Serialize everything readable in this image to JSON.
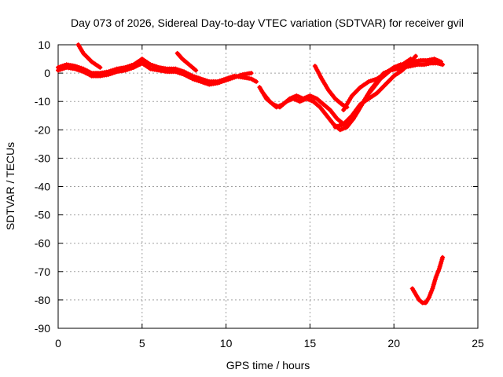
{
  "chart_data": {
    "type": "scatter",
    "title": "Day 073 of 2026, Sidereal Day-to-day VTEC variation (SDTVAR) for receiver gvil",
    "xlabel": "GPS time / hours",
    "ylabel": "SDTVAR / TECUs",
    "xlim": [
      0,
      25
    ],
    "ylim": [
      -90,
      10
    ],
    "xticks": [
      0,
      5,
      10,
      15,
      20,
      25
    ],
    "yticks": [
      10,
      0,
      -10,
      -20,
      -30,
      -40,
      -50,
      -60,
      -70,
      -80,
      -90
    ],
    "grid": true,
    "color": "#ff0000",
    "marker": "plus",
    "series": [
      {
        "x": [
          0.0,
          0.5,
          1.0,
          1.5,
          2.0,
          2.5,
          3.0,
          3.5,
          4.0,
          4.5,
          5.0,
          5.5,
          6.0,
          6.5,
          7.0,
          7.5,
          8.0,
          8.5,
          9.0,
          9.5,
          10.0,
          10.5,
          11.0,
          11.5,
          11.8
        ],
        "y": [
          2,
          3,
          2.5,
          1.5,
          0,
          0,
          0.5,
          1.5,
          2,
          3,
          5,
          3,
          2,
          1.5,
          1.5,
          0.5,
          -1,
          -2,
          -3,
          -3,
          -2,
          -1,
          -1.5,
          -2,
          -3
        ]
      },
      {
        "x": [
          0.0,
          0.5,
          1.0,
          1.5,
          2.0,
          2.5,
          3.0,
          3.5,
          4.0,
          4.5,
          5.0,
          5.5,
          6.0,
          6.5,
          7.0,
          7.5,
          8.0,
          8.5,
          9.0,
          9.5,
          10.0,
          10.5,
          11.0,
          11.5
        ],
        "y": [
          1,
          2,
          1.5,
          0.5,
          -1,
          -1,
          -0.5,
          0.5,
          1,
          2,
          3.5,
          1.5,
          1,
          0.5,
          0.5,
          -0.5,
          -2,
          -3,
          -4,
          -3.5,
          -2.5,
          -1.5,
          -0.5,
          0
        ]
      },
      {
        "x": [
          1.2,
          1.5,
          2.0,
          2.5
        ],
        "y": [
          10,
          7,
          4,
          2
        ]
      },
      {
        "x": [
          7.1,
          7.4,
          7.8,
          8.2
        ],
        "y": [
          7,
          5,
          3,
          1
        ]
      },
      {
        "x": [
          12.0,
          12.4,
          12.8,
          13.2,
          13.6,
          14.0,
          14.4,
          14.8,
          15.2,
          15.6,
          16.0,
          16.4,
          16.8,
          17.2,
          17.6,
          18.0,
          18.4,
          18.8,
          19.2,
          19.6,
          20.0,
          20.4,
          20.8,
          21.2,
          21.6,
          22.0,
          22.4,
          22.8
        ],
        "y": [
          -5,
          -9,
          -11,
          -12,
          -10,
          -9,
          -10,
          -9,
          -10,
          -12,
          -15,
          -18,
          -20,
          -19,
          -16,
          -12,
          -8,
          -5,
          -2,
          0,
          2,
          3,
          3,
          4,
          4.5,
          4.5,
          5,
          4
        ]
      },
      {
        "x": [
          12.2,
          12.6,
          13.0,
          13.4,
          13.8,
          14.2,
          14.6,
          15.0,
          15.4,
          15.8,
          16.2,
          16.6,
          17.0,
          17.4,
          17.8,
          18.2,
          18.6,
          19.0,
          19.4,
          19.8,
          20.2,
          20.6,
          21.0,
          21.4,
          21.8,
          22.2,
          22.6,
          22.9
        ],
        "y": [
          -7,
          -10,
          -12,
          -11,
          -9,
          -8,
          -9,
          -8,
          -9,
          -11,
          -13,
          -16,
          -18,
          -17,
          -14,
          -10,
          -6,
          -3,
          0,
          1,
          1.5,
          2,
          2.5,
          3,
          3,
          3.5,
          3.5,
          3
        ]
      },
      {
        "x": [
          15.3,
          15.7,
          16.1,
          16.5,
          16.9,
          17.2
        ],
        "y": [
          2.5,
          -2,
          -6,
          -9,
          -11,
          -12
        ]
      },
      {
        "x": [
          16.5,
          17.0,
          17.5,
          18.0,
          18.5,
          19.0,
          19.5,
          20.0,
          20.5,
          21.0,
          21.3
        ],
        "y": [
          -19,
          -18,
          -15,
          -11,
          -9,
          -7,
          -4,
          -1,
          1,
          4,
          6
        ]
      },
      {
        "x": [
          17.0,
          17.5,
          18.0,
          18.5,
          19.0,
          19.5,
          20.0,
          20.5,
          21.0
        ],
        "y": [
          -13,
          -8,
          -5,
          -3,
          -2,
          0,
          2,
          3,
          5
        ]
      },
      {
        "x": [
          21.1,
          21.3,
          21.5,
          21.7,
          21.9,
          22.1,
          22.3,
          22.5,
          22.7,
          22.9
        ],
        "y": [
          -76,
          -78,
          -80,
          -81,
          -81,
          -79,
          -76,
          -72,
          -69,
          -65
        ]
      }
    ]
  }
}
